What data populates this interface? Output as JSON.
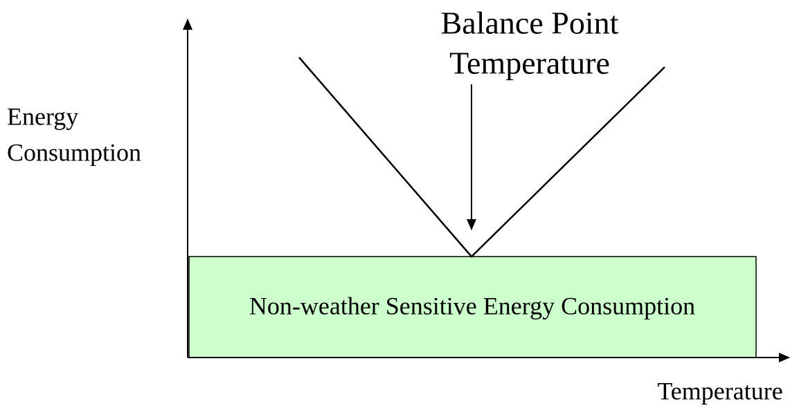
{
  "annotation": {
    "lines": [
      "Balance Point",
      "Temperature"
    ]
  },
  "y_axis_label": {
    "lines": [
      "Energy",
      "Consumption"
    ]
  },
  "x_axis_label": "Temperature",
  "base_box_label": "Non-weather Sensitive Energy Consumption"
}
